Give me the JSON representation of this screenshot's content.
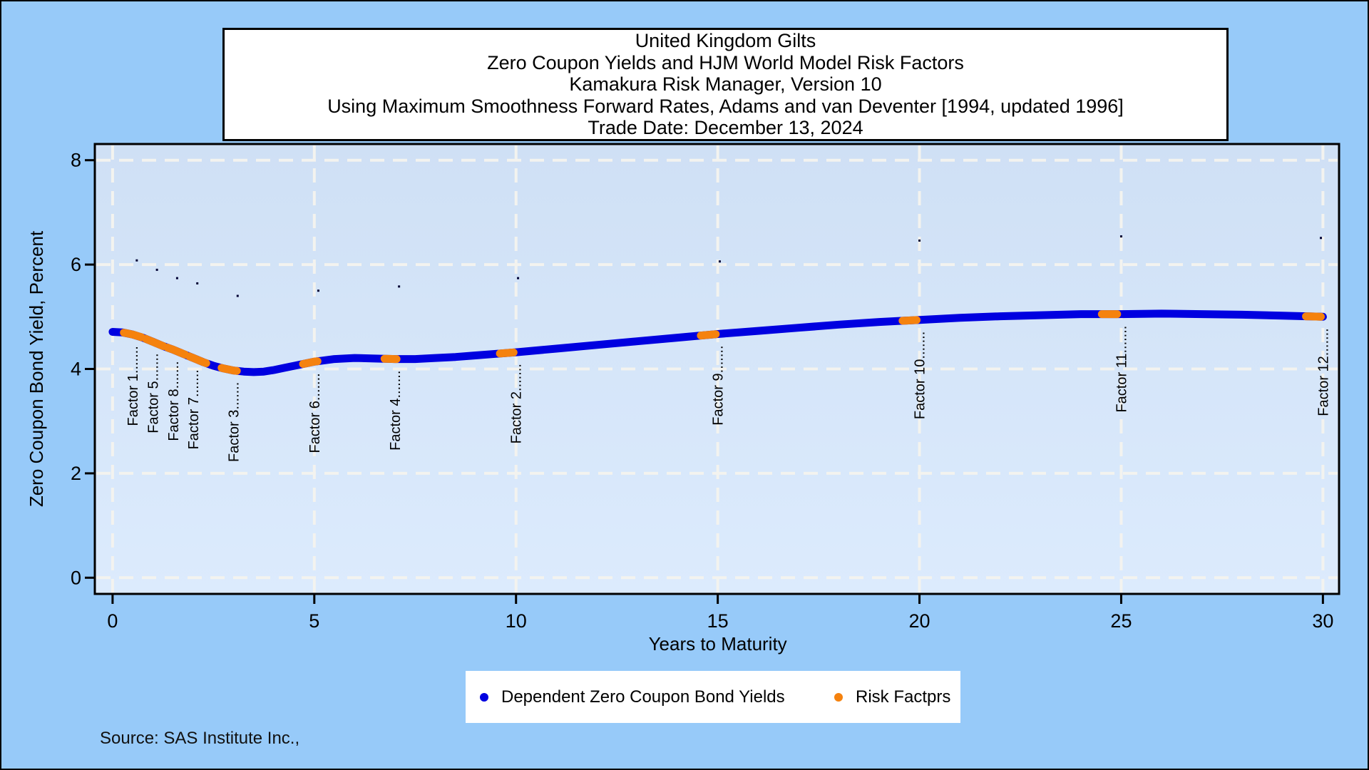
{
  "header": {
    "lines": [
      "United Kingdom Gilts",
      "Zero Coupon Yields and HJM World Model Risk Factors",
      "Kamakura Risk Manager, Version 10",
      "Using Maximum Smoothness Forward Rates, Adams and van Deventer [1994, updated 1996]",
      "Trade Date: December 13, 2024"
    ]
  },
  "source_note": "Source: SAS Institute Inc.,",
  "legend": {
    "position": "bottom-center, white box",
    "items": [
      {
        "label": "Dependent Zero Coupon Bond Yields",
        "color": "#0000e0"
      },
      {
        "label": "Risk Factprs",
        "color": "#f5820e"
      }
    ]
  },
  "colors": {
    "page_bg": "#97caf9",
    "plot_bg_top": "#cfe0f5",
    "plot_bg_bottom": "#dcebfd",
    "grid": "#f3f3ef",
    "curve_blue": "#0000e0",
    "factor_orange": "#f5820e",
    "dot_navy": "#000033",
    "frame": "#000000",
    "title_bg": "#ffffff"
  },
  "chart_data": {
    "type": "line",
    "title": "United Kingdom Gilts — Zero Coupon Yields and HJM World Model Risk Factors — Kamakura Risk Manager, Version 10 — Using Maximum Smoothness Forward Rates, Adams and van Deventer [1994, updated 1996] — Trade Date: December 13, 2024",
    "xlabel": "Years to Maturity",
    "ylabel": "Zero Coupon Bond Yield, Percent",
    "xlim": [
      -0.44,
      30.4
    ],
    "ylim": [
      -0.31,
      8.31
    ],
    "x_ticks": [
      0,
      5,
      10,
      15,
      20,
      25,
      30
    ],
    "y_ticks": [
      0,
      2,
      4,
      6,
      8
    ],
    "grid": "white dashed, both axes",
    "series": [
      {
        "name": "Dependent Zero Coupon Bond Yields",
        "style": "thick rounded blue line",
        "color": "#0000e0",
        "points": [
          [
            0,
            4.71
          ],
          [
            0.25,
            4.7
          ],
          [
            0.5,
            4.66
          ],
          [
            0.75,
            4.6
          ],
          [
            1,
            4.52
          ],
          [
            1.25,
            4.44
          ],
          [
            1.5,
            4.37
          ],
          [
            1.75,
            4.29
          ],
          [
            2,
            4.21
          ],
          [
            2.25,
            4.13
          ],
          [
            2.5,
            4.06
          ],
          [
            2.75,
            4.01
          ],
          [
            3,
            3.97
          ],
          [
            3.25,
            3.95
          ],
          [
            3.5,
            3.94
          ],
          [
            3.75,
            3.95
          ],
          [
            4,
            3.98
          ],
          [
            4.25,
            4.02
          ],
          [
            4.5,
            4.06
          ],
          [
            4.75,
            4.1
          ],
          [
            5,
            4.14
          ],
          [
            5.5,
            4.19
          ],
          [
            6,
            4.21
          ],
          [
            6.5,
            4.2
          ],
          [
            7,
            4.19
          ],
          [
            7.5,
            4.19
          ],
          [
            8,
            4.21
          ],
          [
            8.5,
            4.23
          ],
          [
            9,
            4.26
          ],
          [
            9.5,
            4.29
          ],
          [
            10,
            4.32
          ],
          [
            11,
            4.39
          ],
          [
            12,
            4.46
          ],
          [
            13,
            4.53
          ],
          [
            14,
            4.6
          ],
          [
            15,
            4.67
          ],
          [
            16,
            4.73
          ],
          [
            17,
            4.79
          ],
          [
            18,
            4.85
          ],
          [
            19,
            4.9
          ],
          [
            20,
            4.94
          ],
          [
            21,
            4.98
          ],
          [
            22,
            5.01
          ],
          [
            23,
            5.03
          ],
          [
            24,
            5.05
          ],
          [
            25,
            5.05
          ],
          [
            26,
            5.06
          ],
          [
            27,
            5.05
          ],
          [
            28,
            5.04
          ],
          [
            29,
            5.02
          ],
          [
            30,
            5.0
          ]
        ]
      },
      {
        "name": "Risk Factprs",
        "style": "orange dash overlays on the curve with rotated dotted labels",
        "color": "#f5820e",
        "label_leader": ".......",
        "factors": [
          {
            "label": "Factor 1",
            "maturity": 0.5,
            "yield": 4.66,
            "span": [
              0.28,
              0.72
            ]
          },
          {
            "label": "Factor 5",
            "maturity": 1,
            "yield": 4.52,
            "span": [
              0.82,
              1.26
            ]
          },
          {
            "label": "Factor 8",
            "maturity": 1.5,
            "yield": 4.37,
            "span": [
              1.36,
              1.8
            ]
          },
          {
            "label": "Factor 7",
            "maturity": 2,
            "yield": 4.21,
            "span": [
              1.9,
              2.32
            ]
          },
          {
            "label": "Factor 3",
            "maturity": 3,
            "yield": 3.97,
            "span": [
              2.7,
              3.08
            ]
          },
          {
            "label": "Factor 6",
            "maturity": 5,
            "yield": 4.14,
            "span": [
              4.72,
              5.08
            ]
          },
          {
            "label": "Factor 4",
            "maturity": 7,
            "yield": 4.19,
            "span": [
              6.74,
              7.04
            ]
          },
          {
            "label": "Factor 2",
            "maturity": 10,
            "yield": 4.32,
            "span": [
              9.6,
              9.94
            ]
          },
          {
            "label": "Factor 9",
            "maturity": 15,
            "yield": 4.67,
            "span": [
              14.58,
              14.95
            ]
          },
          {
            "label": "Factor 10",
            "maturity": 20,
            "yield": 4.94,
            "span": [
              19.58,
              19.93
            ]
          },
          {
            "label": "Factor 11",
            "maturity": 25,
            "yield": 5.05,
            "span": [
              24.52,
              24.9
            ]
          },
          {
            "label": "Factor 12",
            "maturity": 30,
            "yield": 5.0,
            "span": [
              29.58,
              29.95
            ]
          }
        ]
      },
      {
        "name": "small unlabeled dark dots",
        "style": "tiny navy squares above the curve",
        "color": "#000033",
        "points": [
          [
            0.6,
            6.08
          ],
          [
            1.1,
            5.9
          ],
          [
            1.6,
            5.74
          ],
          [
            2.1,
            5.64
          ],
          [
            3.1,
            5.4
          ],
          [
            5.1,
            5.5
          ],
          [
            7.1,
            5.58
          ],
          [
            10.05,
            5.74
          ],
          [
            15.05,
            6.06
          ],
          [
            20.0,
            6.46
          ],
          [
            25.0,
            6.54
          ],
          [
            29.95,
            6.51
          ]
        ]
      }
    ]
  }
}
